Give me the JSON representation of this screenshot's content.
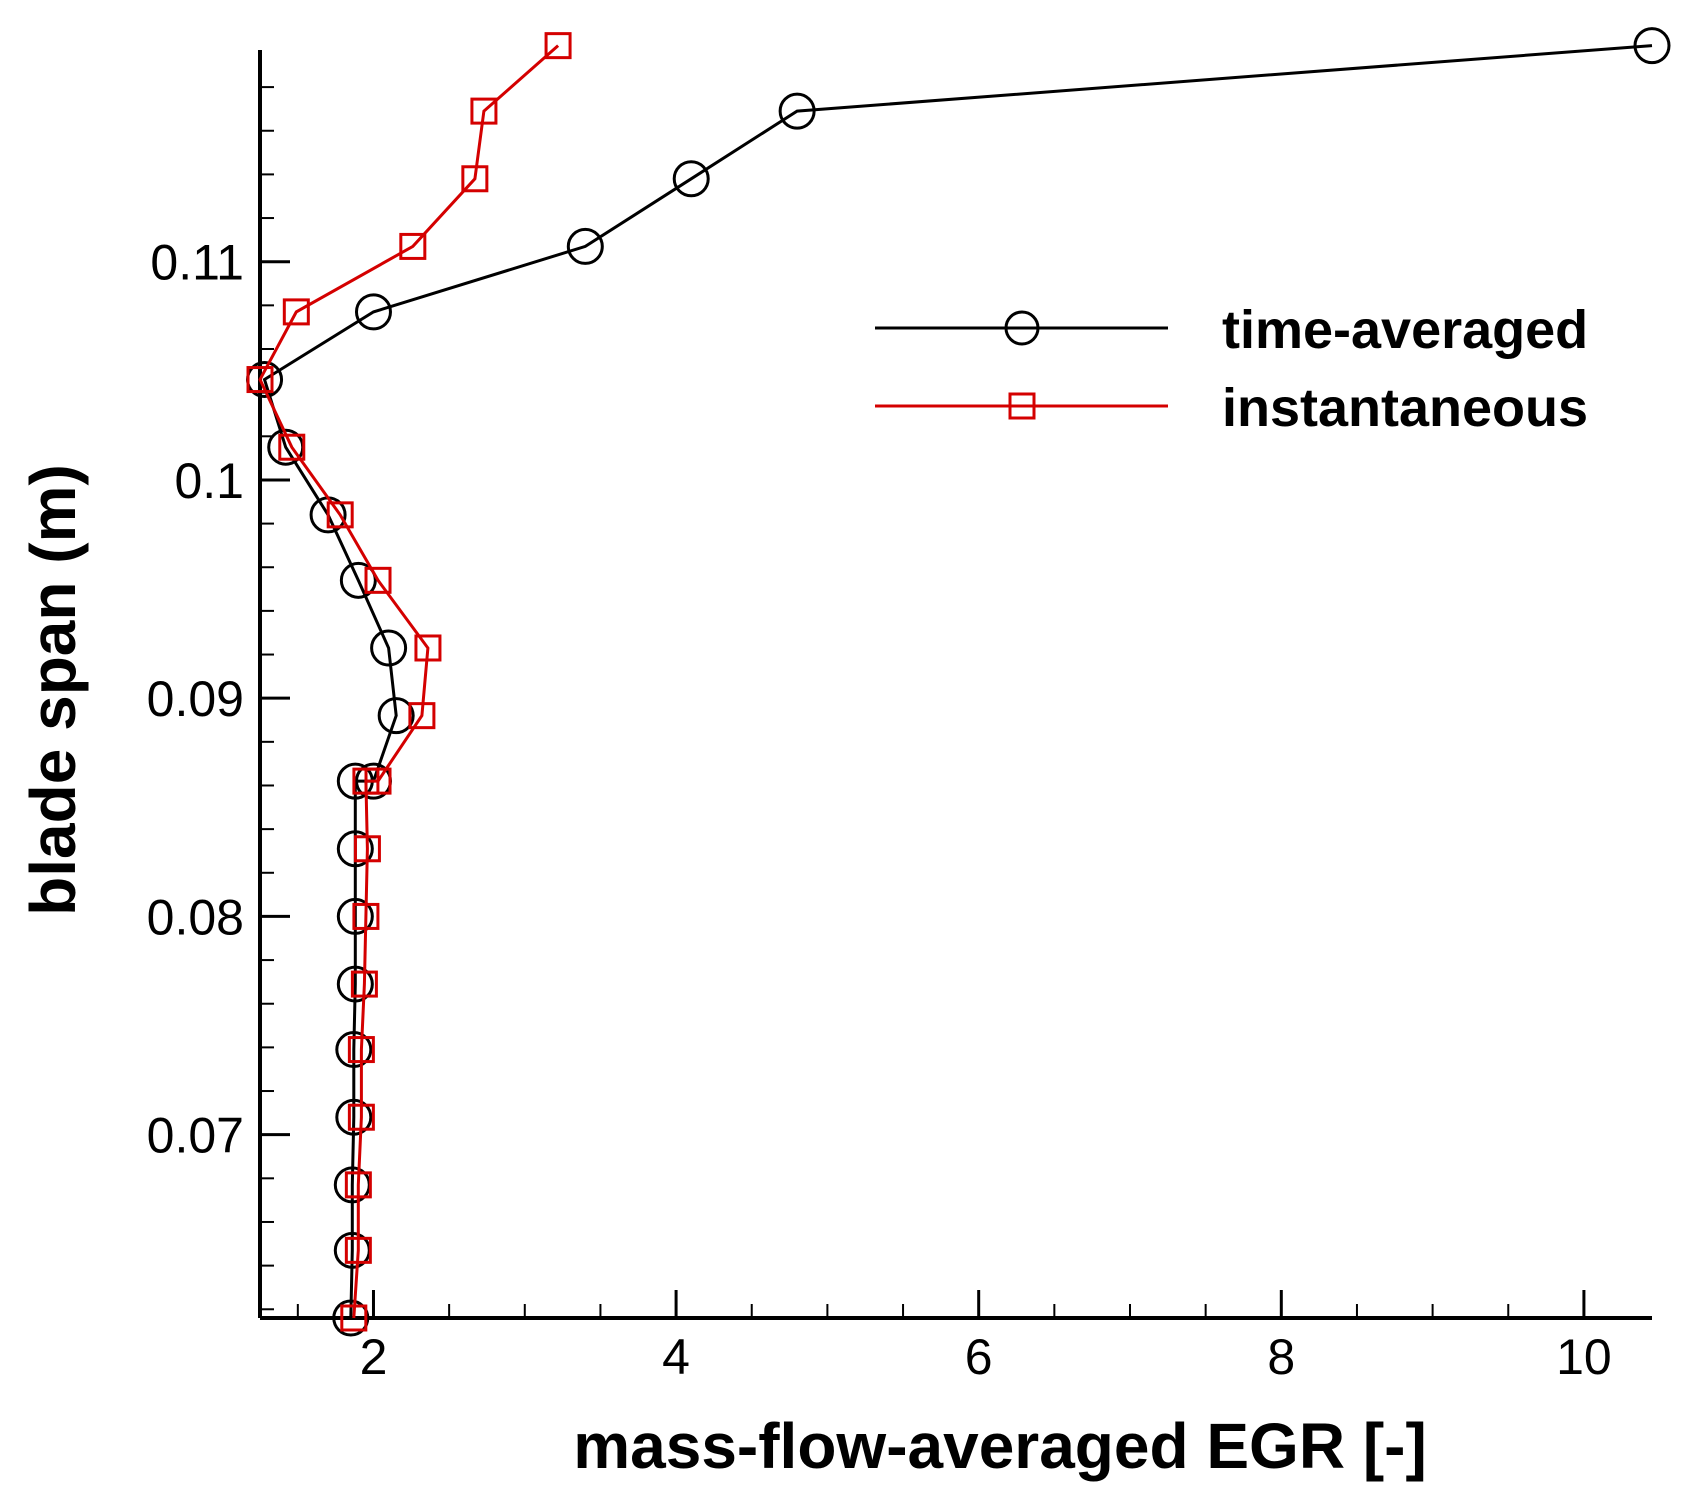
{
  "chart_data": {
    "type": "line",
    "title": "",
    "xlabel": "mass-flow-averaged EGR [-]",
    "ylabel": "blade span (m)",
    "xlim": [
      1.25,
      10.45
    ],
    "ylim": [
      0.0616,
      0.1197
    ],
    "x_ticks": [
      2,
      4,
      6,
      8,
      10
    ],
    "x_tick_labels": [
      "2",
      "4",
      "6",
      "8",
      "10"
    ],
    "y_ticks": [
      0.07,
      0.08,
      0.09,
      0.1,
      0.11
    ],
    "y_tick_labels": [
      "0.07",
      "0.08",
      "0.09",
      "0.1",
      "0.11"
    ],
    "x_minor_step": 0.5,
    "y_minor_step": 0.002,
    "grid": false,
    "legend_position": "top-right",
    "series": [
      {
        "name": "time-averaged",
        "color": "#000000",
        "marker": "circle",
        "x": [
          1.85,
          1.86,
          1.86,
          1.87,
          1.87,
          1.88,
          1.88,
          1.88,
          1.88,
          2.0,
          2.15,
          2.1,
          1.9,
          1.7,
          1.42,
          1.28,
          2.0,
          3.4,
          4.1,
          4.8,
          10.45
        ],
        "y": [
          0.0616,
          0.0647,
          0.0677,
          0.0708,
          0.0739,
          0.0769,
          0.08,
          0.0831,
          0.0862,
          0.0862,
          0.0892,
          0.0923,
          0.0954,
          0.0984,
          0.1015,
          0.1046,
          0.1077,
          0.1107,
          0.1138,
          0.1169,
          0.1199
        ]
      },
      {
        "name": "instantaneous",
        "color": "#d40000",
        "marker": "square",
        "x": [
          1.87,
          1.9,
          1.9,
          1.92,
          1.92,
          1.94,
          1.95,
          1.96,
          1.95,
          2.03,
          2.32,
          2.36,
          2.03,
          1.78,
          1.46,
          1.25,
          1.49,
          2.26,
          2.67,
          2.73,
          3.22
        ],
        "y": [
          0.0616,
          0.0647,
          0.0677,
          0.0708,
          0.0739,
          0.0769,
          0.08,
          0.0831,
          0.0862,
          0.0862,
          0.0892,
          0.0923,
          0.0954,
          0.0984,
          0.1015,
          0.1046,
          0.1077,
          0.1107,
          0.1138,
          0.1169,
          0.1199
        ]
      }
    ]
  }
}
